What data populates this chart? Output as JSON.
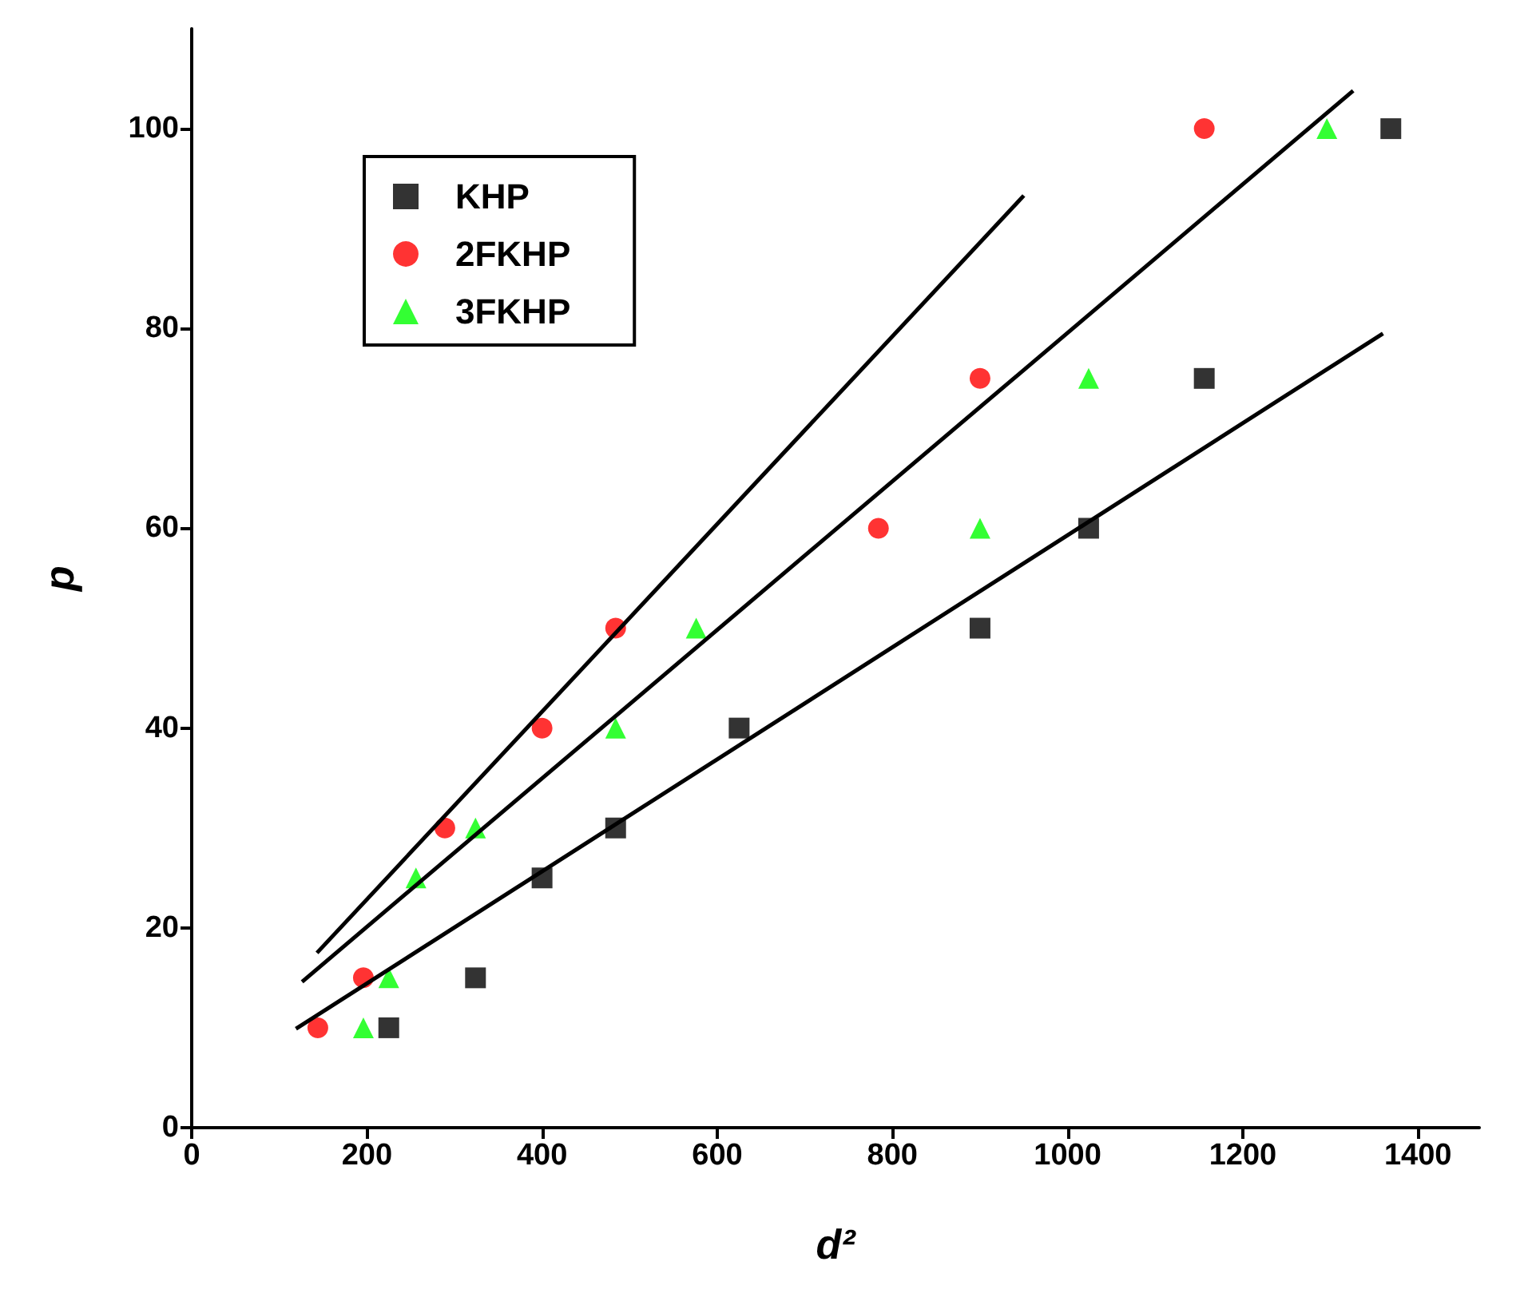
{
  "chart_data": {
    "type": "scatter",
    "xlabel": "d²",
    "ylabel": "p",
    "xlim": [
      0,
      1470
    ],
    "xticks": [
      0,
      200,
      400,
      600,
      800,
      1000,
      1200,
      1400
    ],
    "ylim": [
      0,
      110
    ],
    "yticks": [
      0,
      20,
      40,
      60,
      80,
      100
    ],
    "grid": false,
    "legend": "top left",
    "series": [
      {
        "name": "KHP",
        "color": "#000000",
        "marker": "square",
        "x": [
          225,
          324,
          400,
          484,
          625,
          900,
          1024,
          1156,
          1369
        ],
        "values": [
          10,
          15,
          25,
          30,
          40,
          50,
          60,
          75,
          100
        ]
      },
      {
        "name": "2FKHP",
        "color": "#ff0000",
        "marker": "circle",
        "x": [
          144,
          196,
          289,
          400,
          484,
          784,
          900,
          1156
        ],
        "values": [
          10,
          15,
          30,
          40,
          50,
          60,
          75,
          100
        ]
      },
      {
        "name": "3FKHP",
        "color": "#00ff00",
        "marker": "triangle",
        "x": [
          196,
          225,
          256,
          324,
          484,
          576,
          900,
          1024,
          1296
        ],
        "values": [
          10,
          15,
          25,
          30,
          40,
          50,
          60,
          75,
          100
        ]
      },
      {
        "type": "line",
        "color": "#000000",
        "marker": "none",
        "x": [
          143,
          950
        ],
        "values": [
          17.5,
          93.3
        ]
      },
      {
        "type": "line",
        "color": "#000000",
        "marker": "none",
        "x": [
          126,
          1326
        ],
        "values": [
          14.6,
          103.8
        ]
      },
      {
        "type": "line",
        "color": "#000000",
        "marker": "none",
        "x": [
          119,
          1360
        ],
        "values": [
          9.9,
          79.5
        ]
      }
    ]
  }
}
